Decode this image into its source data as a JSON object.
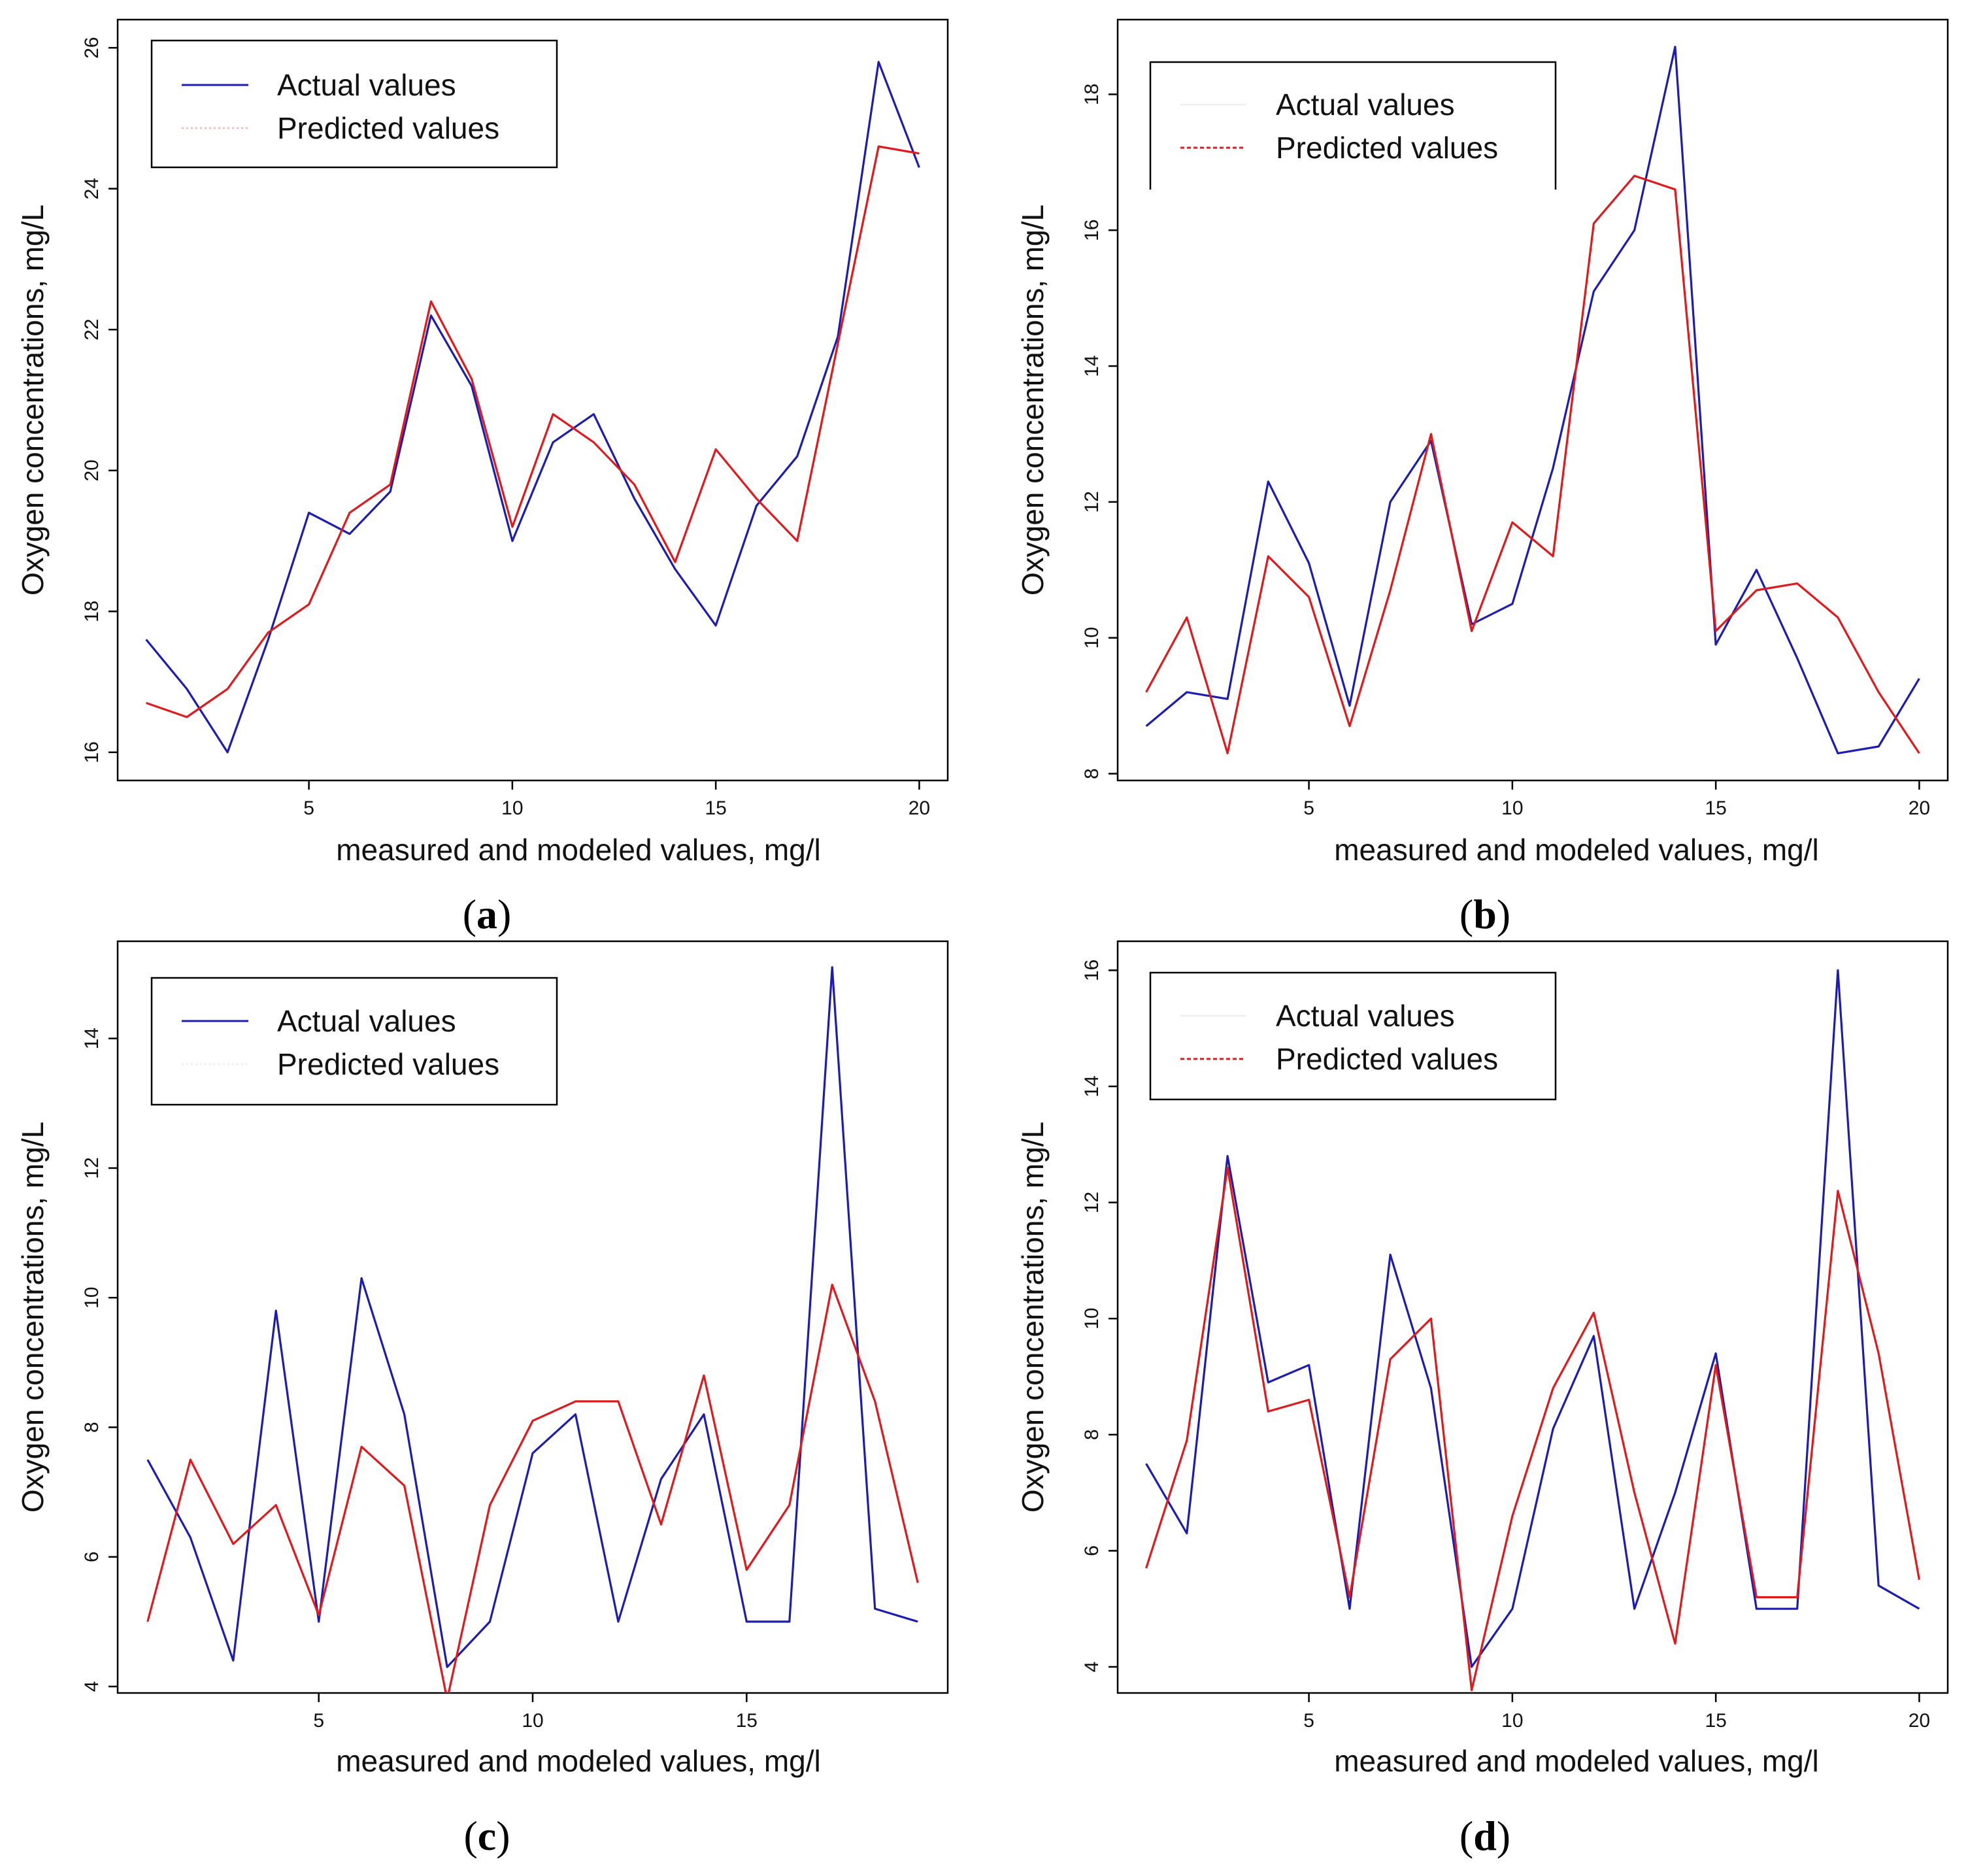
{
  "colors": {
    "actual": "#1c1cb0",
    "predicted": "#e0191c",
    "legend_faint": "#f0b8b8",
    "axis": "#000000"
  },
  "chart_data": [
    {
      "panel": "a",
      "caption_letter": "a",
      "type": "line",
      "xlabel": "measured and modeled values, mg/l",
      "ylabel": "Oxygen concentrations, mg/L",
      "xlim": [
        0.3,
        20.7
      ],
      "ylim": [
        15.6,
        26.4
      ],
      "xticks": [
        5,
        10,
        15,
        20
      ],
      "yticks": [
        16,
        18,
        20,
        22,
        24,
        26
      ],
      "legend": {
        "entries": [
          "Actual values",
          "Predicted values"
        ],
        "styles": [
          "solid-blue",
          "dotted-faint"
        ],
        "position": "top-left",
        "open_bottom": false
      },
      "series": [
        {
          "name": "Actual values",
          "color_key": "actual",
          "x": [
            1,
            2,
            3,
            4,
            5,
            6,
            7,
            8,
            9,
            10,
            11,
            12,
            13,
            14,
            15,
            16,
            17,
            18,
            19,
            20
          ],
          "values": [
            17.6,
            16.9,
            16.0,
            17.6,
            19.4,
            19.1,
            19.7,
            22.2,
            21.2,
            19.0,
            20.4,
            20.8,
            19.6,
            18.6,
            17.8,
            19.5,
            20.2,
            21.9,
            25.8,
            24.3
          ]
        },
        {
          "name": "Predicted values",
          "color_key": "predicted",
          "x": [
            1,
            2,
            3,
            4,
            5,
            6,
            7,
            8,
            9,
            10,
            11,
            12,
            13,
            14,
            15,
            16,
            17,
            18,
            19,
            20
          ],
          "values": [
            16.7,
            16.5,
            16.9,
            17.7,
            18.1,
            19.4,
            19.8,
            22.4,
            21.3,
            19.2,
            20.8,
            20.4,
            19.8,
            18.7,
            20.3,
            19.6,
            19.0,
            21.8,
            24.6,
            24.5
          ]
        }
      ]
    },
    {
      "panel": "b",
      "caption_letter": "b",
      "type": "line",
      "xlabel": "measured and modeled values, mg/l",
      "ylabel": "Oxygen concentrations, mg/L",
      "xlim": [
        0.3,
        20.7
      ],
      "ylim": [
        7.9,
        19.1
      ],
      "xticks": [
        5,
        10,
        15,
        20
      ],
      "yticks": [
        8,
        10,
        12,
        14,
        16,
        18
      ],
      "legend": {
        "entries": [
          "Actual values",
          "Predicted values"
        ],
        "styles": [
          "solid-faint",
          "dashed-red"
        ],
        "position": "top-left",
        "open_bottom": true
      },
      "series": [
        {
          "name": "Actual values",
          "color_key": "actual",
          "x": [
            1,
            2,
            3,
            4,
            5,
            6,
            7,
            8,
            9,
            10,
            11,
            12,
            13,
            14,
            15,
            16,
            17,
            18,
            19,
            20
          ],
          "values": [
            8.7,
            9.2,
            9.1,
            12.3,
            11.1,
            9.0,
            12.0,
            12.9,
            10.2,
            10.5,
            12.5,
            15.1,
            16.0,
            18.7,
            9.9,
            11.0,
            9.7,
            8.3,
            8.4,
            9.4
          ]
        },
        {
          "name": "Predicted values",
          "color_key": "predicted",
          "x": [
            1,
            2,
            3,
            4,
            5,
            6,
            7,
            8,
            9,
            10,
            11,
            12,
            13,
            14,
            15,
            16,
            17,
            18,
            19,
            20
          ],
          "values": [
            9.2,
            10.3,
            8.3,
            11.2,
            10.6,
            8.7,
            10.7,
            13.0,
            10.1,
            11.7,
            11.2,
            16.1,
            16.8,
            16.6,
            10.1,
            10.7,
            10.8,
            10.3,
            9.2,
            8.3
          ]
        }
      ]
    },
    {
      "panel": "c",
      "caption_letter": "c",
      "type": "line",
      "xlabel": "measured and modeled values, mg/l",
      "ylabel": "Oxygen concentrations, mg/L",
      "xlim": [
        0.3,
        19.7
      ],
      "ylim": [
        3.9,
        15.5
      ],
      "xticks": [
        5,
        10,
        15
      ],
      "yticks": [
        4,
        6,
        8,
        10,
        12,
        14
      ],
      "legend": {
        "entries": [
          "Actual values",
          "Predicted values"
        ],
        "styles": [
          "solid-blue",
          "dotted-faint"
        ],
        "position": "top-left",
        "open_bottom": false
      },
      "series": [
        {
          "name": "Actual values",
          "color_key": "actual",
          "x": [
            1,
            2,
            3,
            4,
            5,
            6,
            7,
            8,
            9,
            10,
            11,
            12,
            13,
            14,
            15,
            16,
            17,
            18,
            19
          ],
          "values": [
            7.5,
            6.3,
            4.4,
            9.8,
            5.0,
            10.3,
            8.2,
            4.3,
            5.0,
            7.6,
            8.2,
            5.0,
            7.2,
            8.2,
            5.0,
            5.0,
            15.1,
            5.2,
            5.0
          ]
        },
        {
          "name": "Predicted values",
          "color_key": "predicted",
          "x": [
            1,
            2,
            3,
            4,
            5,
            6,
            7,
            8,
            9,
            10,
            11,
            12,
            13,
            14,
            15,
            16,
            17,
            18,
            19
          ],
          "values": [
            5.0,
            7.5,
            6.2,
            6.8,
            5.1,
            7.7,
            7.1,
            3.8,
            6.8,
            8.1,
            8.4,
            8.4,
            6.5,
            8.8,
            5.8,
            6.8,
            10.2,
            8.4,
            5.6
          ]
        }
      ]
    },
    {
      "panel": "d",
      "caption_letter": "d",
      "type": "line",
      "xlabel": "measured and modeled values, mg/l",
      "ylabel": "Oxygen concentrations, mg/L",
      "xlim": [
        0.3,
        20.7
      ],
      "ylim": [
        3.55,
        16.5
      ],
      "xticks": [
        5,
        10,
        15,
        20
      ],
      "yticks": [
        4,
        6,
        8,
        10,
        12,
        14,
        16
      ],
      "legend": {
        "entries": [
          "Actual values",
          "Predicted values"
        ],
        "styles": [
          "solid-faint",
          "dashed-red"
        ],
        "position": "top-left",
        "open_bottom": false
      },
      "series": [
        {
          "name": "Actual values",
          "color_key": "actual",
          "x": [
            1,
            2,
            3,
            4,
            5,
            6,
            7,
            8,
            9,
            10,
            11,
            12,
            13,
            14,
            15,
            16,
            17,
            18,
            19,
            20
          ],
          "values": [
            7.5,
            6.3,
            12.8,
            8.9,
            9.2,
            5.0,
            11.1,
            8.8,
            4.0,
            5.0,
            8.1,
            9.7,
            5.0,
            7.0,
            9.4,
            5.0,
            5.0,
            16.0,
            5.4,
            5.0
          ]
        },
        {
          "name": "Predicted values",
          "color_key": "predicted",
          "x": [
            1,
            2,
            3,
            4,
            5,
            6,
            7,
            8,
            9,
            10,
            11,
            12,
            13,
            14,
            15,
            16,
            17,
            18,
            19,
            20
          ],
          "values": [
            5.7,
            7.9,
            12.6,
            8.4,
            8.6,
            5.2,
            9.3,
            10.0,
            3.6,
            6.6,
            8.8,
            10.1,
            7.0,
            4.4,
            9.2,
            5.2,
            5.2,
            12.2,
            9.4,
            5.5
          ]
        }
      ]
    }
  ]
}
